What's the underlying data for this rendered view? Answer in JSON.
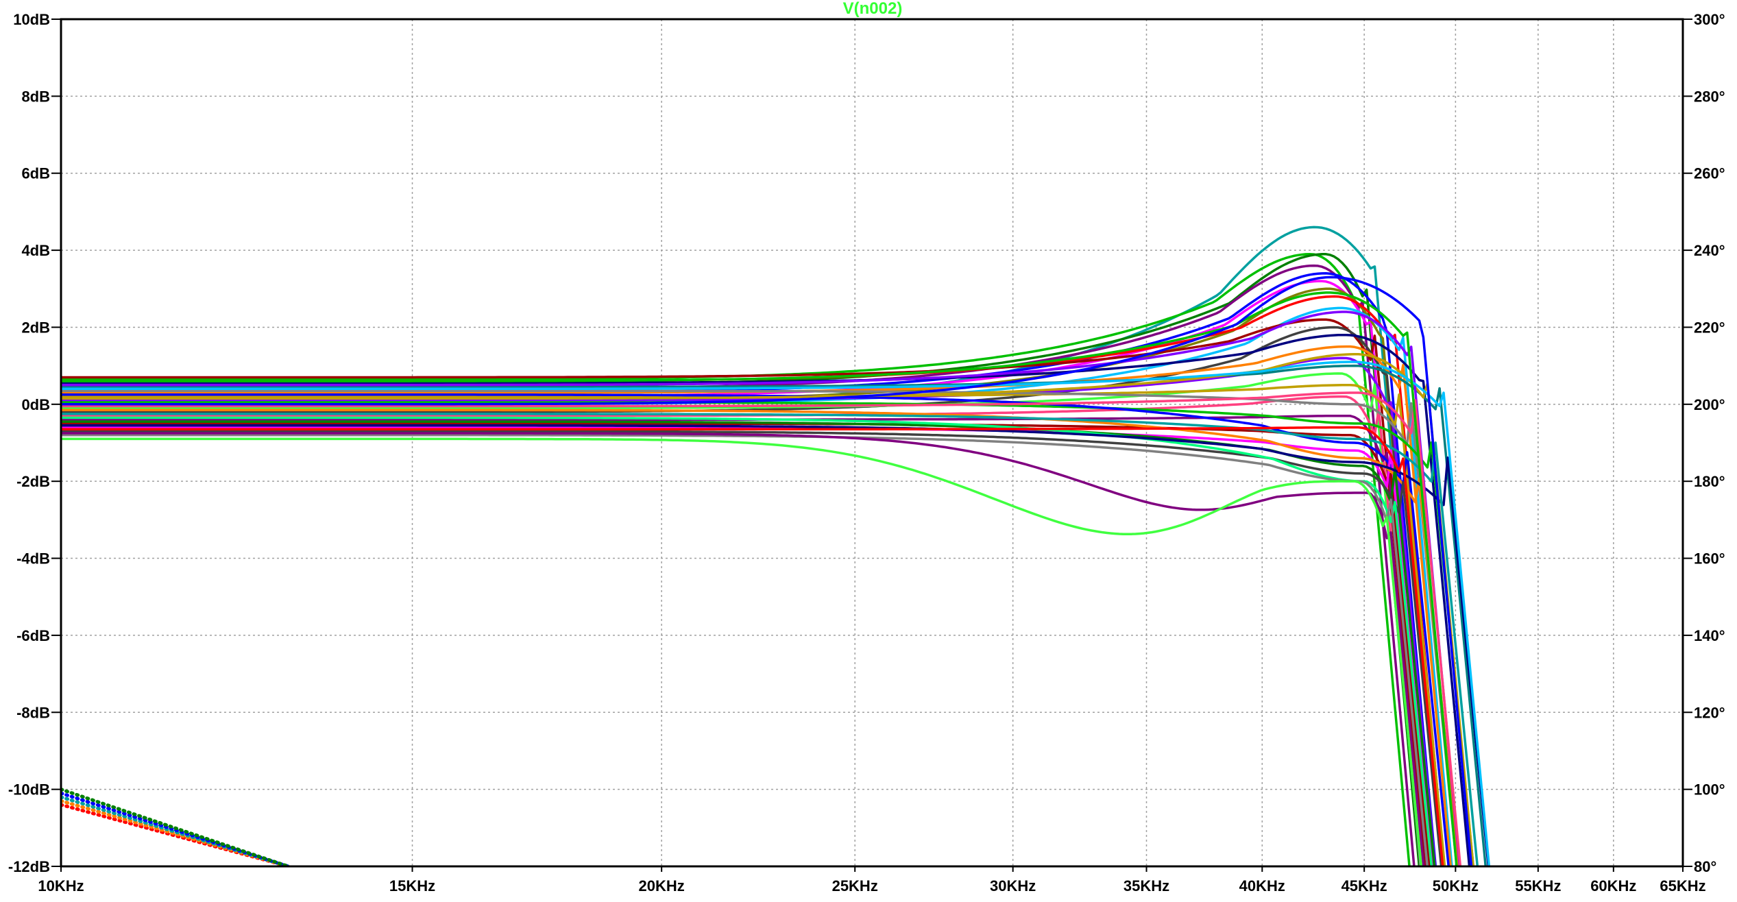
{
  "chart_data": {
    "type": "line",
    "title": "V(n002)",
    "title_color": "#33ff33",
    "x_scale": "log",
    "x_range_hz": [
      10000,
      65000
    ],
    "x_ticks": [
      {
        "value": 10000,
        "label": "10KHz"
      },
      {
        "value": 15000,
        "label": "15KHz"
      },
      {
        "value": 20000,
        "label": "20KHz"
      },
      {
        "value": 25000,
        "label": "25KHz"
      },
      {
        "value": 30000,
        "label": "30KHz"
      },
      {
        "value": 35000,
        "label": "35KHz"
      },
      {
        "value": 40000,
        "label": "40KHz"
      },
      {
        "value": 45000,
        "label": "45KHz"
      },
      {
        "value": 50000,
        "label": "50KHz"
      },
      {
        "value": 55000,
        "label": "55KHz"
      },
      {
        "value": 60000,
        "label": "60KHz"
      },
      {
        "value": 65000,
        "label": "65KHz"
      }
    ],
    "y_left_range": [
      -12,
      10
    ],
    "y_left_ticks": [
      {
        "value": 10,
        "label": "10dB"
      },
      {
        "value": 8,
        "label": "8dB"
      },
      {
        "value": 6,
        "label": "6dB"
      },
      {
        "value": 4,
        "label": "4dB"
      },
      {
        "value": 2,
        "label": "2dB"
      },
      {
        "value": 0,
        "label": "0dB"
      },
      {
        "value": -2,
        "label": "-2dB"
      },
      {
        "value": -4,
        "label": "-4dB"
      },
      {
        "value": -6,
        "label": "-6dB"
      },
      {
        "value": -8,
        "label": "-8dB"
      },
      {
        "value": -10,
        "label": "-10dB"
      },
      {
        "value": -12,
        "label": "-12dB"
      }
    ],
    "y_right_range": [
      80,
      300
    ],
    "y_right_ticks": [
      {
        "value": 300,
        "label": "300°"
      },
      {
        "value": 280,
        "label": "280°"
      },
      {
        "value": 260,
        "label": "260°"
      },
      {
        "value": 240,
        "label": "240°"
      },
      {
        "value": 220,
        "label": "220°"
      },
      {
        "value": 200,
        "label": "200°"
      },
      {
        "value": 180,
        "label": "180°"
      },
      {
        "value": 160,
        "label": "160°"
      },
      {
        "value": 140,
        "label": "140°"
      },
      {
        "value": 120,
        "label": "120°"
      },
      {
        "value": 100,
        "label": "100°"
      },
      {
        "value": 80,
        "label": "80°"
      }
    ],
    "grid": true,
    "grid_style": "dotted",
    "series_count": 40,
    "colors": [
      "#800080",
      "#00c000",
      "#0000ff",
      "#ff0000",
      "#00a0a0",
      "#808000",
      "#ff00ff",
      "#008000",
      "#ff8000",
      "#404040",
      "#00c0ff",
      "#a00000",
      "#8000ff",
      "#40ff40",
      "#000080",
      "#c0a000",
      "#ff4080",
      "#008080",
      "#808080",
      "#00ff80"
    ],
    "series": [
      {
        "offset": 0.0,
        "peak": 4.6,
        "fpeak": 42500,
        "fc": 45500,
        "color": "#00a0a0"
      },
      {
        "offset": 0.65,
        "peak": 3.9,
        "fpeak": 42300,
        "fc": 44500,
        "color": "#00c000"
      },
      {
        "offset": 0.5,
        "peak": 3.9,
        "fpeak": 43000,
        "fc": 45000,
        "color": "#008000"
      },
      {
        "offset": 0.4,
        "peak": 3.6,
        "fpeak": 42500,
        "fc": 44800,
        "color": "#800080"
      },
      {
        "offset": 0.3,
        "peak": 3.4,
        "fpeak": 43000,
        "fc": 46000,
        "color": "#0000ff"
      },
      {
        "offset": 0.2,
        "peak": 3.2,
        "fpeak": 42800,
        "fc": 45200,
        "color": "#ff00ff"
      },
      {
        "offset": 0.1,
        "peak": 3.0,
        "fpeak": 43200,
        "fc": 45800,
        "color": "#808000"
      },
      {
        "offset": 0.6,
        "peak": 2.8,
        "fpeak": 43500,
        "fc": 46500,
        "color": "#ff0000"
      },
      {
        "offset": 0.0,
        "peak": 2.5,
        "fpeak": 43800,
        "fc": 47000,
        "color": "#00c0ff"
      },
      {
        "offset": 0.7,
        "peak": 2.2,
        "fpeak": 43000,
        "fc": 45500,
        "color": "#a00000"
      },
      {
        "offset": -0.2,
        "peak": 2.0,
        "fpeak": 43500,
        "fc": 46000,
        "color": "#404040"
      },
      {
        "offset": 0.55,
        "peak": 1.8,
        "fpeak": 44000,
        "fc": 48000,
        "color": "#000080"
      },
      {
        "offset": 0.3,
        "peak": 1.5,
        "fpeak": 44200,
        "fc": 47000,
        "color": "#ff8000"
      },
      {
        "offset": 0.1,
        "peak": 1.2,
        "fpeak": 44000,
        "fc": 46200,
        "color": "#8000ff"
      },
      {
        "offset": 0.45,
        "peak": 1.0,
        "fpeak": 44500,
        "fc": 49000,
        "color": "#008080"
      },
      {
        "offset": -0.1,
        "peak": 0.8,
        "fpeak": 43800,
        "fc": 45500,
        "color": "#40ff40"
      },
      {
        "offset": 0.2,
        "peak": 0.5,
        "fpeak": 44300,
        "fc": 46800,
        "color": "#c0a000"
      },
      {
        "offset": -0.3,
        "peak": 0.2,
        "fpeak": 44000,
        "fc": 45700,
        "color": "#ff4080"
      },
      {
        "offset": 0.35,
        "peak": 0.0,
        "fpeak": 44500,
        "fc": 47500,
        "color": "#808080"
      },
      {
        "offset": -0.4,
        "peak": -0.3,
        "fpeak": 44200,
        "fc": 46000,
        "color": "#800080"
      },
      {
        "offset": 0.05,
        "peak": -0.5,
        "fpeak": 44800,
        "fc": 48500,
        "color": "#00c000"
      },
      {
        "offset": -0.5,
        "peak": -0.8,
        "fpeak": 44300,
        "fc": 46200,
        "color": "#a00000"
      },
      {
        "offset": 0.25,
        "peak": -1.0,
        "fpeak": 44500,
        "fc": 47200,
        "color": "#0000ff"
      },
      {
        "offset": -0.6,
        "peak": -1.2,
        "fpeak": 44600,
        "fc": 46400,
        "color": "#ff00ff"
      },
      {
        "offset": -0.15,
        "peak": -1.4,
        "fpeak": 44800,
        "fc": 47800,
        "color": "#ff8000"
      },
      {
        "offset": -0.45,
        "peak": -1.6,
        "fpeak": 44900,
        "fc": 46600,
        "color": "#008000"
      },
      {
        "offset": -0.7,
        "peak": -1.8,
        "fpeak": 45000,
        "fc": 47000,
        "color": "#404040"
      },
      {
        "offset": -0.35,
        "peak": -2.0,
        "fpeak": 45000,
        "fc": 46500,
        "color": "#00ff80"
      },
      {
        "offset": -0.8,
        "peak": -2.0,
        "fpeak": 44800,
        "fc": 46300,
        "color": "#808080"
      },
      {
        "offset": -0.55,
        "peak": -1.5,
        "fpeak": 44500,
        "fc": 49500,
        "color": "#000080"
      },
      {
        "offset": -0.25,
        "peak": -0.9,
        "fpeak": 44600,
        "fc": 48800,
        "color": "#00a0a0"
      },
      {
        "offset": 0.15,
        "peak": 1.3,
        "fpeak": 44600,
        "fc": 48300,
        "color": "#c0a000"
      },
      {
        "offset": 0.5,
        "peak": 2.4,
        "fpeak": 44000,
        "fc": 47400,
        "color": "#8000ff"
      },
      {
        "offset": -0.05,
        "peak": 0.3,
        "fpeak": 44700,
        "fc": 47700,
        "color": "#ff4080"
      },
      {
        "offset": 0.4,
        "peak": 1.1,
        "fpeak": 44400,
        "fc": 49200,
        "color": "#00c0ff"
      },
      {
        "offset": -0.65,
        "peak": -0.6,
        "fpeak": 44700,
        "fc": 46900,
        "color": "#ff0000"
      },
      {
        "offset": 0.6,
        "peak": 2.9,
        "fpeak": 43200,
        "fc": 47200,
        "color": "#00c000"
      },
      {
        "offset": 0.0,
        "peak": 3.3,
        "fpeak": 43300,
        "fc": 48100,
        "color": "#0000ff"
      },
      {
        "offset": -0.75,
        "peak": -2.3,
        "fpeak": 45200,
        "fc": 46200,
        "color": "#800080",
        "dip": -2.6,
        "fdip": 40000
      },
      {
        "offset": -0.9,
        "peak": -2.0,
        "fpeak": 44500,
        "fc": 46000,
        "color": "#40ff40",
        "dip": -3.2,
        "fdip": 35000
      }
    ],
    "phase_dotted_traces": {
      "start_hz": 10000,
      "end_hz": 13000,
      "start_deg": [
        96,
        97,
        98,
        99,
        100
      ],
      "end_deg": [
        80,
        80,
        80,
        80,
        80
      ],
      "colors": [
        "#ff0000",
        "#ff8000",
        "#00a0a0",
        "#0000ff",
        "#008000"
      ]
    }
  }
}
